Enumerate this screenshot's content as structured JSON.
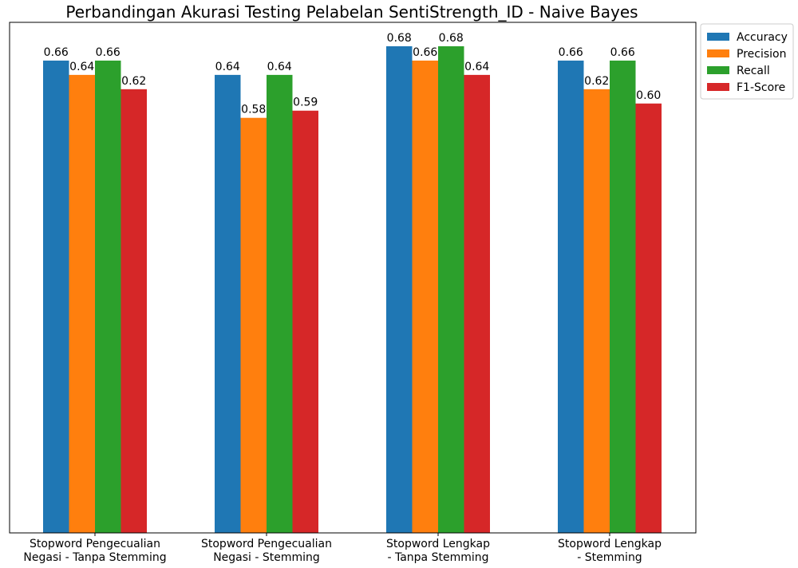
{
  "chart_data": {
    "type": "bar",
    "title": "Perbandingan Akurasi Testing Pelabelan SentiStrength_ID - Naive Bayes",
    "xlabel": "",
    "ylabel": "",
    "ylim": [
      0,
      0.68
    ],
    "grid": false,
    "legend_position": "outside-top-right",
    "categories": [
      [
        "Stopword Pengecualian",
        "Negasi - Tanpa Stemming"
      ],
      [
        "Stopword Pengecualian",
        "Negasi - Stemming"
      ],
      [
        "Stopword Lengkap",
        "- Tanpa Stemming"
      ],
      [
        "Stopword Lengkap",
        "- Stemming"
      ]
    ],
    "series": [
      {
        "name": "Accuracy",
        "color": "#1f77b4",
        "values": [
          0.66,
          0.64,
          0.68,
          0.66
        ],
        "labels": [
          "0.66",
          "0.64",
          "0.68",
          "0.66"
        ]
      },
      {
        "name": "Precision",
        "color": "#ff7f0e",
        "values": [
          0.64,
          0.58,
          0.66,
          0.62
        ],
        "labels": [
          "0.64",
          "0.58",
          "0.66",
          "0.62"
        ]
      },
      {
        "name": "Recall",
        "color": "#2ca02c",
        "values": [
          0.66,
          0.64,
          0.68,
          0.66
        ],
        "labels": [
          "0.66",
          "0.64",
          "0.68",
          "0.66"
        ]
      },
      {
        "name": "F1-Score",
        "color": "#d62728",
        "values": [
          0.62,
          0.59,
          0.64,
          0.6
        ],
        "labels": [
          "0.62",
          "0.59",
          "0.64",
          "0.60"
        ]
      }
    ]
  }
}
